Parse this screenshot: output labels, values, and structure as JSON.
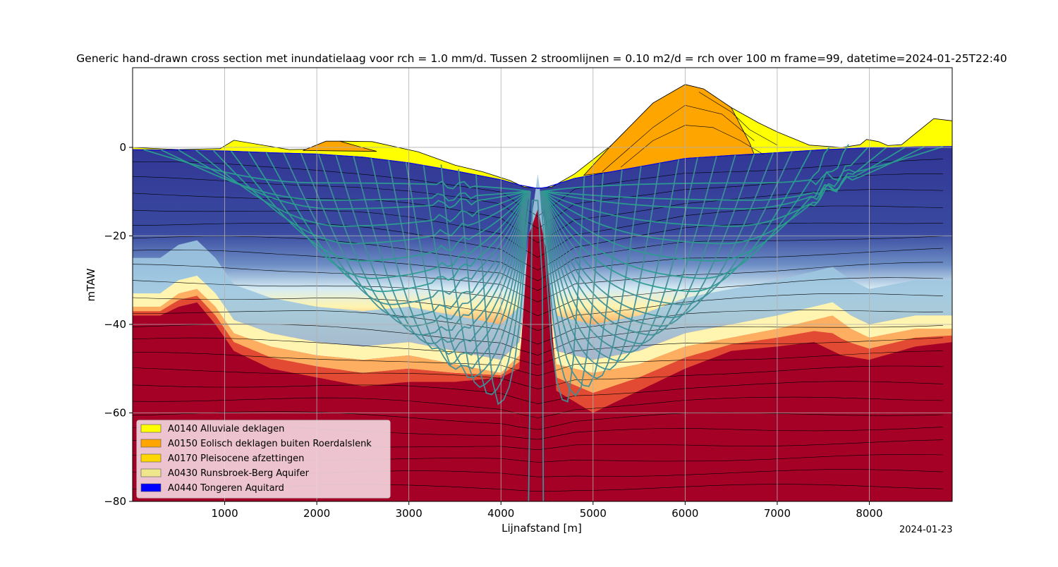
{
  "chart_data": {
    "type": "area",
    "title": "Generic hand-drawn cross section met inundatielaag voor rch = 1.0 mm/d. Tussen 2 stroomlijnen = 0.10 m2/d = rch over 100 m frame=99, datetime=2024-01-25T22:40",
    "xlabel": "Lijnafstand [m]",
    "ylabel": "mTAW",
    "xlim": [
      0,
      8900
    ],
    "ylim": [
      -80,
      18
    ],
    "x_ticks": [
      1000,
      2000,
      3000,
      4000,
      5000,
      6000,
      7000,
      8000
    ],
    "y_ticks": [
      0,
      -20,
      -40,
      -60,
      -80
    ],
    "y_tick_labels": [
      "0",
      "−20",
      "−40",
      "−60",
      "−80"
    ],
    "grid": true,
    "legend_position": "lower-left",
    "legend": [
      {
        "label": "A0140 Alluviale deklagen",
        "color": "#ffff00"
      },
      {
        "label": "A0150 Eolisch deklagen buiten Roerdalslenk",
        "color": "#ffa500"
      },
      {
        "label": "A0170 Pleisocene afzettingen",
        "color": "#ffd700"
      },
      {
        "label": "A0430 Runsbroek-Berg Aquifer",
        "color": "#f0e68c"
      },
      {
        "label": "A0440 Tongeren Aquitard",
        "color": "#0000ff"
      }
    ],
    "surface_profile": {
      "x": [
        0,
        500,
        950,
        1100,
        1700,
        2000,
        2100,
        2250,
        2600,
        3100,
        3500,
        3800,
        4100,
        4250,
        4400,
        4550,
        4800,
        5200,
        5650,
        6000,
        6200,
        6500,
        6800,
        7000,
        7350,
        7700,
        7900,
        7970,
        8100,
        8200,
        8350,
        8700,
        8900
      ],
      "y": [
        0,
        -0.5,
        -0.3,
        1.6,
        -0.5,
        -0.4,
        0.2,
        1.4,
        1.3,
        -1,
        -4,
        -5.5,
        -7.5,
        -9,
        -9.2,
        -9,
        -6,
        0.5,
        10,
        14.2,
        13.2,
        9,
        5.5,
        3.5,
        0.5,
        0,
        0.6,
        1.8,
        1.3,
        0.4,
        0.6,
        6.5,
        6
      ]
    },
    "aquifer_top": {
      "x": [
        0,
        500,
        1000,
        1500,
        2000,
        2500,
        3000,
        3500,
        4000,
        4200,
        4400,
        4500,
        4800,
        5200,
        5600,
        6000,
        6500,
        7000,
        7500,
        8000,
        8500,
        8900
      ],
      "y": [
        -0.5,
        -0.6,
        -0.8,
        -1.2,
        -1.5,
        -2.2,
        -3.5,
        -5.3,
        -7.3,
        -8.5,
        -9.3,
        -9,
        -7,
        -5.5,
        -4,
        -2.5,
        -1.8,
        -1.2,
        -0.5,
        -0.1,
        0.1,
        0.2
      ]
    },
    "eolian_lens_left": {
      "x": [
        1850,
        2100,
        2250,
        2400,
        2650
      ],
      "y": [
        -0.7,
        1.4,
        1.4,
        0.5,
        -0.9
      ]
    },
    "eolian_hill": {
      "x": [
        4900,
        5200,
        5650,
        6000,
        6200,
        6500,
        6700,
        6750
      ],
      "y": [
        -6.3,
        0.5,
        10,
        14.2,
        13.2,
        9,
        1,
        -1.6
      ]
    },
    "eolian_internal_lines": [
      {
        "x": [
          5300,
          5650,
          6000,
          6300,
          6600,
          6850
        ],
        "y": [
          -4.5,
          1.5,
          5,
          4.5,
          1.5,
          -1.6
        ]
      },
      {
        "x": [
          5100,
          5650,
          6000,
          6400,
          6750
        ],
        "y": [
          -5.5,
          4.5,
          9.5,
          7.5,
          1.5
        ]
      },
      {
        "x": [
          6150,
          6500,
          6700,
          7000
        ],
        "y": [
          12.5,
          8,
          4,
          0.5
        ]
      }
    ],
    "freshwater_boundary": {
      "x": [
        0,
        300,
        500,
        700,
        900,
        1100,
        1500,
        2000,
        2500,
        3000,
        3500,
        4000,
        4200,
        4400,
        4600,
        5000,
        5500,
        6000,
        6500,
        7000,
        7400,
        7600,
        7800,
        8000,
        8500,
        8900
      ],
      "y": [
        -33,
        -33,
        -30,
        -29,
        -33,
        -39,
        -42,
        -44,
        -45,
        -44,
        -46,
        -48,
        -44,
        -14,
        -46,
        -48,
        -46,
        -42,
        -40,
        -38,
        -36,
        -35,
        -38,
        -40,
        -38,
        -38
      ]
    },
    "saltwater_boundary": {
      "x": [
        0,
        300,
        500,
        700,
        900,
        1100,
        1500,
        2000,
        2500,
        3000,
        3500,
        4000,
        4200,
        4300,
        4400,
        4500,
        4600,
        5000,
        5500,
        6000,
        6500,
        7000,
        7400,
        7700,
        8000,
        8500,
        8900
      ],
      "y": [
        -38,
        -38,
        -36,
        -35,
        -40,
        -46,
        -50,
        -52,
        -54,
        -53,
        -53,
        -52,
        -50,
        -20,
        -14,
        -24,
        -55,
        -60,
        -55,
        -50,
        -46,
        -45,
        -44,
        -47,
        -48,
        -45,
        -44
      ]
    },
    "salt_spike": {
      "x": [
        4280,
        4330,
        4360,
        4400,
        4440,
        4480
      ],
      "y": [
        -80,
        -30,
        -18,
        -14,
        -24,
        -80
      ]
    },
    "streamline_depths": [
      -8,
      -12,
      -14,
      -18,
      -22,
      -26,
      -30,
      -33,
      -36,
      -39,
      -41,
      -43,
      -45,
      -47,
      -49,
      -51,
      -53,
      -55,
      -57,
      -59
    ],
    "well_x": [
      4300,
      4450
    ]
  }
}
